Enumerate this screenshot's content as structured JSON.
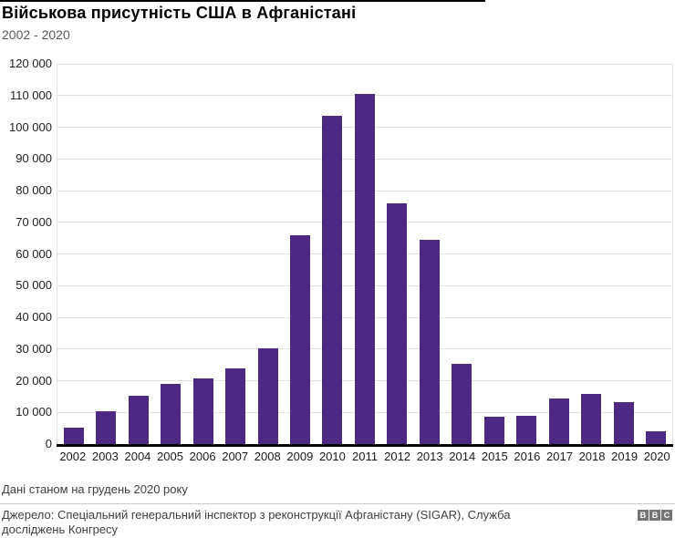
{
  "header": {
    "title": "Військова присутність США в Афганістані",
    "subtitle": "2002 - 2020"
  },
  "chart_data": {
    "type": "bar",
    "title": "Військова присутність США в Афганістані",
    "subtitle": "2002 - 2020",
    "categories": [
      "2002",
      "2003",
      "2004",
      "2005",
      "2006",
      "2007",
      "2008",
      "2009",
      "2010",
      "2011",
      "2012",
      "2013",
      "2014",
      "2015",
      "2016",
      "2017",
      "2018",
      "2019",
      "2020"
    ],
    "values": [
      5200,
      10400,
      15200,
      19100,
      20700,
      24000,
      30100,
      65900,
      103600,
      110500,
      76000,
      64500,
      25300,
      8700,
      8800,
      14300,
      15800,
      13200,
      4000
    ],
    "xlabel": "",
    "ylabel": "",
    "ylim": [
      0,
      120000
    ],
    "ytick_interval": 10000,
    "ytick_labels": [
      "0",
      "10 000",
      "20 000",
      "30 000",
      "40 000",
      "50 000",
      "60 000",
      "70 000",
      "80 000",
      "90 000",
      "100 000",
      "110 000",
      "120 000"
    ],
    "grid": "horizontal",
    "legend": "none",
    "bar_color": "#4c2a84"
  },
  "footer": {
    "note": "Дані станом на грудень 2020 року",
    "source": "Джерело: Спеціальний генеральний інспектор з реконструкції Афганістану (SIGAR), Служба досліджень Конгресу",
    "logo_letters": [
      "B",
      "B",
      "C"
    ]
  },
  "colors": {
    "bar": "#4c2a84",
    "gridline": "#e2e2e2",
    "axis": "#000000",
    "subtitle_text": "#5a5a5a",
    "footer_text": "#404040",
    "bbc_gray": "#757575"
  }
}
